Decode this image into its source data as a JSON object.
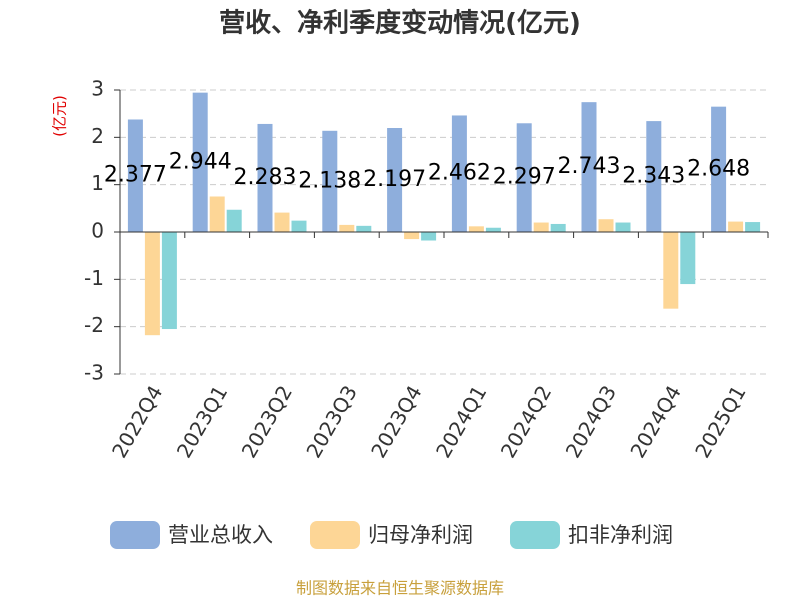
{
  "chart_data": {
    "type": "bar",
    "title": "营收、净利季度变动情况(亿元)",
    "y_label": "(亿元)",
    "source": "制图数据来自恒生聚源数据库",
    "categories": [
      "2022Q4",
      "2023Q1",
      "2023Q2",
      "2023Q3",
      "2023Q4",
      "2024Q1",
      "2024Q2",
      "2024Q3",
      "2024Q4",
      "2025Q1"
    ],
    "series": [
      {
        "name": "营业总收入",
        "color": "#8eaedc",
        "values": [
          2.377,
          2.944,
          2.283,
          2.138,
          2.197,
          2.462,
          2.297,
          2.743,
          2.343,
          2.648
        ],
        "show_labels": true
      },
      {
        "name": "归母净利润",
        "color": "#fdd696",
        "values": [
          -2.18,
          0.75,
          0.41,
          0.15,
          -0.15,
          0.12,
          0.2,
          0.27,
          -1.62,
          0.22
        ]
      },
      {
        "name": "扣非净利润",
        "color": "#86d4d8",
        "values": [
          -2.05,
          0.47,
          0.24,
          0.13,
          -0.18,
          0.09,
          0.17,
          0.2,
          -1.1,
          0.21
        ]
      }
    ],
    "ylim": [
      -3,
      3
    ],
    "yticks": [
      -3,
      -2,
      -1,
      0,
      1,
      2,
      3
    ],
    "grid": true,
    "legend": "bottom"
  }
}
